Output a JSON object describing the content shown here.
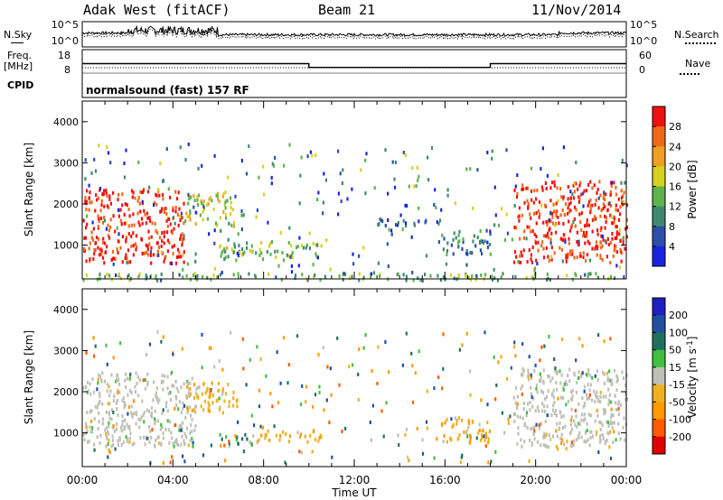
{
  "header": {
    "station": "Adak West (fitACF)",
    "beam": "Beam 21",
    "date": "11/Nov/2014"
  },
  "left_labels": {
    "nsky": "N.Sky",
    "freq": "Freq.",
    "freq_unit": "[MHz]",
    "cpid": "CPID"
  },
  "right_labels": {
    "nsearch": "N.Search",
    "nave": "Nave"
  },
  "noise_axis": {
    "top": "10^5",
    "bottom": "10^0"
  },
  "freq_axis": {
    "top": "18",
    "bottom": "8"
  },
  "nave_axis": {
    "top": "60",
    "bottom": "0"
  },
  "cpid_text": "normalsound (fast) 157 RF",
  "time_axis": {
    "title": "Time UT",
    "ticks": [
      "00:00",
      "04:00",
      "08:00",
      "12:00",
      "16:00",
      "20:00",
      "00:00"
    ]
  },
  "range_axis": {
    "title": "Slant Range [km]",
    "ticks": [
      "1000",
      "2000",
      "3000",
      "4000"
    ]
  },
  "colors": {
    "power": [
      "#1a24e0",
      "#2c4fa8",
      "#3f8a6e",
      "#5fb34a",
      "#d8d020",
      "#f0a020",
      "#f06818",
      "#f01010"
    ],
    "velocity": [
      "#e00000",
      "#ff5a00",
      "#ff9a00",
      "#f0b020",
      "#c0c0b8",
      "#40c040",
      "#207060",
      "#2050a0",
      "#2020c0"
    ],
    "ground": "#c0c0b8"
  },
  "power_scale": {
    "label": "Power [dB]",
    "ticks": [
      "4",
      "8",
      "12",
      "16",
      "20",
      "24",
      "28"
    ]
  },
  "velocity_scale": {
    "label": "Velocity [m s",
    "label_sup": "-1",
    "label_end": "]",
    "ticks": [
      "-200",
      "-100",
      "-50",
      "-15",
      "15",
      "50",
      "100",
      "200"
    ]
  },
  "chart_data": [
    {
      "type": "line",
      "name": "N.Sky / N.Search noise",
      "x_unit": "hours UT",
      "xlim": [
        0,
        24
      ],
      "ylim": [
        "10^0",
        "10^5"
      ],
      "log_scale": true
    },
    {
      "type": "line",
      "name": "Freq. [MHz]",
      "x": [
        0,
        10,
        10,
        18,
        18,
        24
      ],
      "values": [
        13,
        13,
        11,
        11,
        13,
        13
      ],
      "ylim": [
        8,
        18
      ]
    },
    {
      "type": "heatmap",
      "title": "Power [dB]",
      "xlim": [
        0,
        24
      ],
      "ylim": [
        180,
        4500
      ],
      "clim": [
        0,
        30
      ],
      "regions": [
        {
          "x0": 0.0,
          "x1": 4.5,
          "y0": 600,
          "y1": 2400,
          "power": 28
        },
        {
          "x0": 4.5,
          "x1": 6.8,
          "y0": 1500,
          "y1": 2300,
          "power": 16
        },
        {
          "x0": 6.0,
          "x1": 10.5,
          "y0": 700,
          "y1": 1100,
          "power": 14
        },
        {
          "x0": 13.0,
          "x1": 16.0,
          "y0": 1500,
          "y1": 1700,
          "power": 6
        },
        {
          "x0": 15.8,
          "x1": 18.0,
          "y0": 800,
          "y1": 1400,
          "power": 8
        },
        {
          "x0": 19.0,
          "x1": 24.0,
          "y0": 600,
          "y1": 2600,
          "power": 28
        },
        {
          "x0": 0.0,
          "x1": 24.0,
          "y0": 180,
          "y1": 350,
          "power": 12
        }
      ]
    },
    {
      "type": "heatmap",
      "title": "Velocity [m s-1]",
      "xlim": [
        0,
        24
      ],
      "ylim": [
        180,
        4500
      ],
      "clim": [
        -200,
        200
      ],
      "regions": [
        {
          "x0": 0.0,
          "x1": 5.0,
          "y0": 700,
          "y1": 2500,
          "velocity": 0,
          "ground_scatter": true
        },
        {
          "x0": 4.5,
          "x1": 6.8,
          "y0": 1500,
          "y1": 2300,
          "velocity": -30
        },
        {
          "x0": 6.0,
          "x1": 7.6,
          "y0": 700,
          "y1": 1000,
          "velocity": 30
        },
        {
          "x0": 7.6,
          "x1": 10.5,
          "y0": 800,
          "y1": 1100,
          "velocity": -40
        },
        {
          "x0": 15.8,
          "x1": 18.0,
          "y0": 800,
          "y1": 1400,
          "velocity": -40
        },
        {
          "x0": 19.0,
          "x1": 24.0,
          "y0": 700,
          "y1": 2600,
          "velocity": 0,
          "ground_scatter": true
        }
      ]
    }
  ]
}
